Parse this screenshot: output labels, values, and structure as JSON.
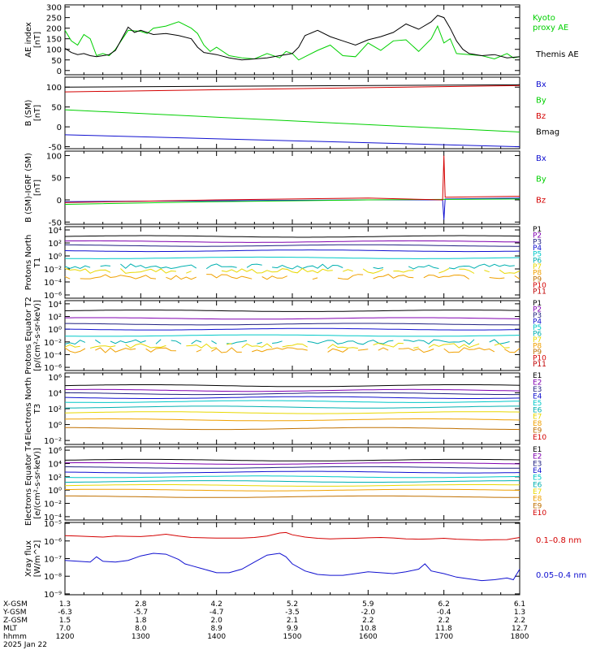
{
  "colors": {
    "black": "#000000",
    "red": "#d40000",
    "green": "#00d000",
    "blue": "#1010d0",
    "purple": "#8000b0",
    "darkblue": "#202080",
    "cyan": "#00c8c8",
    "teal": "#00b0b0",
    "yellow": "#e8d800",
    "orange": "#f0a000",
    "brown": "#c07000",
    "maroon": "#c00000"
  },
  "chart_data": [
    {
      "type": "line",
      "id": "ae",
      "ylabel": "AE index [nT]",
      "ylim": [
        -20,
        310
      ],
      "yticks": [
        0,
        50,
        100,
        150,
        200,
        250,
        300
      ],
      "series": [
        {
          "name": "Kyoto proxy AE",
          "color": "green",
          "x": [
            1200,
            1205,
            1210,
            1215,
            1220,
            1225,
            1230,
            1235,
            1240,
            1250,
            1300,
            1305,
            1310,
            1320,
            1330,
            1340,
            1345,
            1350,
            1355,
            1400,
            1410,
            1420,
            1430,
            1440,
            1450,
            1455,
            1500,
            1505,
            1510,
            1520,
            1530,
            1540,
            1550,
            1600,
            1610,
            1620,
            1630,
            1640,
            1650,
            1655,
            1700,
            1705,
            1710,
            1720,
            1730,
            1740,
            1750,
            1755,
            1800
          ],
          "values": [
            190,
            140,
            120,
            170,
            150,
            70,
            80,
            70,
            100,
            190,
            185,
            175,
            200,
            210,
            230,
            200,
            175,
            120,
            90,
            110,
            70,
            60,
            55,
            80,
            60,
            90,
            80,
            50,
            65,
            95,
            120,
            70,
            65,
            130,
            95,
            140,
            145,
            90,
            150,
            210,
            130,
            150,
            80,
            75,
            70,
            55,
            80,
            60,
            65
          ]
        },
        {
          "name": "Themis AE",
          "color": "black",
          "x": [
            1200,
            1205,
            1210,
            1215,
            1220,
            1225,
            1230,
            1235,
            1240,
            1250,
            1255,
            1300,
            1310,
            1320,
            1330,
            1340,
            1345,
            1350,
            1400,
            1410,
            1420,
            1430,
            1440,
            1450,
            1500,
            1505,
            1510,
            1520,
            1530,
            1540,
            1550,
            1600,
            1610,
            1620,
            1630,
            1640,
            1650,
            1655,
            1700,
            1705,
            1710,
            1715,
            1720,
            1730,
            1740,
            1750,
            1800
          ],
          "values": [
            105,
            85,
            75,
            80,
            70,
            65,
            70,
            75,
            95,
            205,
            180,
            190,
            170,
            175,
            165,
            150,
            110,
            85,
            75,
            60,
            50,
            55,
            60,
            70,
            80,
            110,
            165,
            190,
            160,
            140,
            120,
            145,
            160,
            180,
            220,
            195,
            230,
            260,
            250,
            200,
            140,
            100,
            80,
            70,
            75,
            60,
            65
          ]
        }
      ]
    },
    {
      "type": "line",
      "id": "bsm",
      "ylabel": "B (SM) [nT]",
      "ylim": [
        -55,
        125
      ],
      "yticks": [
        -50,
        0,
        50,
        100
      ],
      "series": [
        {
          "name": "Bx",
          "color": "blue",
          "x": [
            1200,
            1800
          ],
          "values": [
            -20,
            -50
          ]
        },
        {
          "name": "By",
          "color": "green",
          "x": [
            1200,
            1800
          ],
          "values": [
            43,
            -13
          ]
        },
        {
          "name": "Bz",
          "color": "red",
          "x": [
            1200,
            1800
          ],
          "values": [
            88,
            104
          ]
        },
        {
          "name": "Bmag",
          "color": "black",
          "x": [
            1200,
            1800
          ],
          "values": [
            100,
            106
          ]
        }
      ]
    },
    {
      "type": "line",
      "id": "digrf",
      "ylabel": "B (SM)-IGRF (SM) [nT]",
      "ylim": [
        -55,
        110
      ],
      "yticks": [
        -50,
        0,
        50,
        100
      ],
      "series": [
        {
          "name": "Bx",
          "color": "blue",
          "x": [
            1200,
            1400,
            1600,
            1659,
            1700,
            1701,
            1800
          ],
          "values": [
            -4,
            -2,
            0,
            0,
            -45,
            2,
            4
          ]
        },
        {
          "name": "By",
          "color": "green",
          "x": [
            1200,
            1400,
            1600,
            1800
          ],
          "values": [
            -10,
            -4,
            0,
            2
          ]
        },
        {
          "name": "Bz",
          "color": "red",
          "x": [
            1200,
            1400,
            1600,
            1659,
            1700,
            1701,
            1800
          ],
          "values": [
            -6,
            0,
            4,
            0,
            100,
            6,
            8
          ]
        }
      ]
    },
    {
      "type": "line",
      "id": "p_north",
      "ylabel": "Protons North T1",
      "log": true,
      "ylim": [
        -6.5,
        4.5
      ],
      "yticks": [
        "10⁴",
        "10²",
        "10⁰",
        "10⁻²",
        "10⁻⁴",
        "10⁻⁶"
      ],
      "yticks_exp": [
        4,
        2,
        0,
        -2,
        -4,
        -6
      ],
      "legend": [
        "P1",
        "P2",
        "P3",
        "P4",
        "P5",
        "P6",
        "P7",
        "P8",
        "P9",
        "P10",
        "P11"
      ],
      "legend_colors": [
        "black",
        "purple",
        "darkblue",
        "blue",
        "cyan",
        "teal",
        "yellow",
        "orange",
        "brown",
        "red",
        "maroon"
      ],
      "levels_log10": [
        3.0,
        2.2,
        1.6,
        0.8,
        -0.3,
        -1.6,
        -2.3,
        -3.2
      ]
    },
    {
      "type": "line",
      "id": "p_eq",
      "ylabel": "Protons Equator T2 [p/(cm²-s-sr-keV)]",
      "log": true,
      "ylim": [
        -6.5,
        4.5
      ],
      "yticks": [
        "10⁴",
        "10²",
        "10⁰",
        "10⁻²",
        "10⁻⁴",
        "10⁻⁶"
      ],
      "yticks_exp": [
        4,
        2,
        0,
        -2,
        -4,
        -6
      ],
      "legend": [
        "P1",
        "P2",
        "P3",
        "P4",
        "P5",
        "P6",
        "P7",
        "P8",
        "P9",
        "P10",
        "P11"
      ],
      "legend_colors": [
        "black",
        "purple",
        "darkblue",
        "blue",
        "cyan",
        "teal",
        "yellow",
        "orange",
        "brown",
        "red",
        "maroon"
      ],
      "levels_log10": [
        2.9,
        1.7,
        0.8,
        0.0,
        -1.0,
        -2.0,
        -2.6,
        -3.3
      ]
    },
    {
      "type": "line",
      "id": "e_north",
      "ylabel": "Electrons North T3",
      "log": true,
      "ylim": [
        -2.5,
        6.5
      ],
      "yticks": [
        "10⁶",
        "10⁴",
        "10²",
        "10⁰",
        "10⁻²"
      ],
      "yticks_exp": [
        6,
        4,
        2,
        0,
        -2
      ],
      "legend": [
        "E1",
        "E2",
        "E3",
        "E4",
        "E5",
        "E6",
        "E7",
        "E8",
        "E9",
        "E10"
      ],
      "legend_colors": [
        "black",
        "purple",
        "darkblue",
        "blue",
        "cyan",
        "teal",
        "yellow",
        "orange",
        "brown",
        "red"
      ],
      "levels_log10": [
        4.9,
        4.3,
        3.9,
        3.4,
        2.9,
        2.2,
        1.5,
        0.6,
        -0.5
      ]
    },
    {
      "type": "line",
      "id": "e_eq",
      "ylabel": "Electrons Equator T4 [e/(cm²-s-sr-keV)]",
      "log": true,
      "ylim": [
        -4.5,
        6.5
      ],
      "yticks": [
        "10⁶",
        "10⁴",
        "10²",
        "10⁰",
        "10⁻²",
        "10⁻⁴"
      ],
      "yticks_exp": [
        6,
        4,
        2,
        0,
        -2,
        -4
      ],
      "legend": [
        "E1",
        "E2",
        "E3",
        "E4",
        "E5",
        "E6",
        "E7",
        "E8",
        "E9",
        "E10"
      ],
      "legend_colors": [
        "black",
        "purple",
        "darkblue",
        "blue",
        "cyan",
        "teal",
        "yellow",
        "orange",
        "brown",
        "red"
      ],
      "levels_log10": [
        4.5,
        4.0,
        3.4,
        2.7,
        2.0,
        1.3,
        0.7,
        0.0,
        -1.0
      ]
    },
    {
      "type": "line",
      "id": "xray",
      "ylabel": "Xray flux [W/m^2]",
      "log": true,
      "ylim": [
        -9.05,
        -4.95
      ],
      "yticks": [
        "10⁻⁵",
        "10⁻⁶",
        "10⁻⁷",
        "10⁻⁸",
        "10⁻⁹"
      ],
      "yticks_exp": [
        -5,
        -6,
        -7,
        -8,
        -9
      ],
      "series": [
        {
          "name": "0.1–0.8 nm",
          "color": "red",
          "x": [
            1200,
            1210,
            1220,
            1230,
            1240,
            1250,
            1300,
            1310,
            1320,
            1330,
            1340,
            1350,
            1400,
            1410,
            1420,
            1430,
            1440,
            1450,
            1455,
            1500,
            1510,
            1520,
            1530,
            1540,
            1550,
            1600,
            1610,
            1620,
            1630,
            1640,
            1650,
            1700,
            1710,
            1720,
            1730,
            1740,
            1750,
            1800
          ],
          "values": [
            -5.7,
            -5.72,
            -5.75,
            -5.78,
            -5.72,
            -5.74,
            -5.75,
            -5.7,
            -5.62,
            -5.72,
            -5.8,
            -5.82,
            -5.84,
            -5.84,
            -5.84,
            -5.8,
            -5.72,
            -5.55,
            -5.52,
            -5.65,
            -5.78,
            -5.85,
            -5.88,
            -5.86,
            -5.85,
            -5.82,
            -5.8,
            -5.83,
            -5.88,
            -5.9,
            -5.88,
            -5.85,
            -5.9,
            -5.92,
            -5.95,
            -5.93,
            -5.92,
            -5.8
          ]
        },
        {
          "name": "0.05–0.4 nm",
          "color": "blue",
          "x": [
            1200,
            1210,
            1220,
            1225,
            1230,
            1240,
            1250,
            1300,
            1310,
            1320,
            1330,
            1335,
            1340,
            1350,
            1400,
            1410,
            1420,
            1430,
            1440,
            1450,
            1455,
            1500,
            1510,
            1520,
            1530,
            1540,
            1550,
            1600,
            1610,
            1620,
            1630,
            1640,
            1645,
            1650,
            1700,
            1710,
            1720,
            1730,
            1740,
            1750,
            1755,
            1800
          ],
          "values": [
            -7.1,
            -7.15,
            -7.2,
            -6.9,
            -7.15,
            -7.2,
            -7.1,
            -6.85,
            -6.7,
            -6.75,
            -7.05,
            -7.3,
            -7.4,
            -7.6,
            -7.8,
            -7.8,
            -7.6,
            -7.2,
            -6.8,
            -6.7,
            -6.9,
            -7.3,
            -7.7,
            -7.9,
            -7.95,
            -7.95,
            -7.85,
            -7.75,
            -7.8,
            -7.85,
            -7.75,
            -7.6,
            -7.3,
            -7.7,
            -7.85,
            -8.05,
            -8.15,
            -8.25,
            -8.2,
            -8.1,
            -8.2,
            -7.6
          ]
        }
      ]
    }
  ],
  "xaxis": {
    "xlim": [
      1200,
      1800
    ],
    "labels": [
      "X-GSM",
      "Y-GSM",
      "Z-GSM",
      "MLT",
      "hhmm"
    ],
    "date": "2025 Jan 22",
    "rows": [
      [
        "1.3",
        "2.8",
        "4.2",
        "5.2",
        "5.9",
        "6.2",
        "6.1"
      ],
      [
        "-6.3",
        "-5.7",
        "-4.7",
        "-3.5",
        "-2.0",
        "-0.4",
        "1.3"
      ],
      [
        "1.5",
        "1.8",
        "2.0",
        "2.1",
        "2.2",
        "2.2",
        "2.2"
      ],
      [
        "7.0",
        "8.0",
        "8.9",
        "9.9",
        "10.8",
        "11.8",
        "12.7"
      ],
      [
        "1200",
        "1300",
        "1400",
        "1500",
        "1600",
        "1700",
        "1800"
      ]
    ]
  },
  "legends_right": {
    "ae": [
      {
        "text": "Kyoto proxy AE",
        "color": "green"
      },
      {
        "text": "Themis AE",
        "color": "black"
      }
    ],
    "bsm": [
      {
        "text": "Bx",
        "color": "blue"
      },
      {
        "text": "By",
        "color": "green"
      },
      {
        "text": "Bz",
        "color": "red"
      },
      {
        "text": "Bmag",
        "color": "black"
      }
    ],
    "digrf": [
      {
        "text": "Bx",
        "color": "blue"
      },
      {
        "text": "By",
        "color": "green"
      },
      {
        "text": "Bz",
        "color": "red"
      }
    ],
    "xray": [
      {
        "text": "0.1–0.8 nm",
        "color": "red"
      },
      {
        "text": "0.05–0.4 nm",
        "color": "blue"
      }
    ]
  }
}
